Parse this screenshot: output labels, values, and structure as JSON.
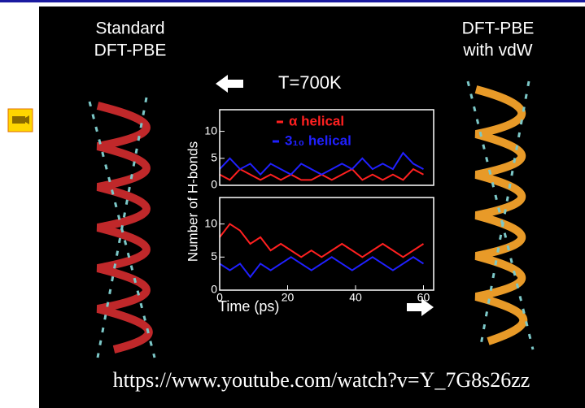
{
  "slide": {
    "left_label": [
      "Standard",
      "DFT-PBE"
    ],
    "right_label": [
      "DFT-PBE",
      "with vdW"
    ],
    "temperature": "T=700K",
    "url": "https://www.youtube.com/watch?v=Y_7G8s26zz"
  },
  "chart_data": [
    {
      "type": "line",
      "ylabel": "Number of H-bonds",
      "x": [
        0,
        3,
        6,
        9,
        12,
        15,
        18,
        21,
        24,
        27,
        30,
        33,
        36,
        39,
        42,
        45,
        48,
        51,
        54,
        57,
        60
      ],
      "series": [
        {
          "name": "α helical",
          "color": "#ff2020",
          "values": [
            2,
            1,
            3,
            2,
            1,
            2,
            1,
            2,
            1,
            1,
            2,
            1,
            2,
            3,
            1,
            2,
            1,
            2,
            1,
            3,
            2
          ]
        },
        {
          "name": "3₁₀ helical",
          "color": "#2020ff",
          "values": [
            3,
            5,
            3,
            4,
            2,
            4,
            3,
            2,
            4,
            3,
            2,
            3,
            4,
            3,
            5,
            3,
            4,
            3,
            6,
            4,
            3
          ]
        }
      ],
      "xlim": [
        0,
        63
      ],
      "ylim": [
        0,
        14
      ],
      "yticks": [
        0,
        5,
        10
      ]
    },
    {
      "type": "line",
      "xlabel": "Time (ps)",
      "x": [
        0,
        3,
        6,
        9,
        12,
        15,
        18,
        21,
        24,
        27,
        30,
        33,
        36,
        39,
        42,
        45,
        48,
        51,
        54,
        57,
        60
      ],
      "series": [
        {
          "color": "#ff2020",
          "values": [
            8,
            10,
            9,
            7,
            8,
            6,
            7,
            6,
            5,
            6,
            5,
            6,
            7,
            6,
            5,
            6,
            7,
            6,
            5,
            6,
            7
          ]
        },
        {
          "color": "#2020ff",
          "values": [
            4,
            3,
            4,
            2,
            4,
            3,
            4,
            5,
            4,
            3,
            4,
            5,
            4,
            3,
            4,
            5,
            4,
            3,
            4,
            5,
            4
          ]
        }
      ],
      "xlim": [
        0,
        63
      ],
      "ylim": [
        0,
        14
      ],
      "xticks": [
        0,
        20,
        40,
        60
      ],
      "yticks": [
        0,
        5,
        10
      ]
    }
  ]
}
